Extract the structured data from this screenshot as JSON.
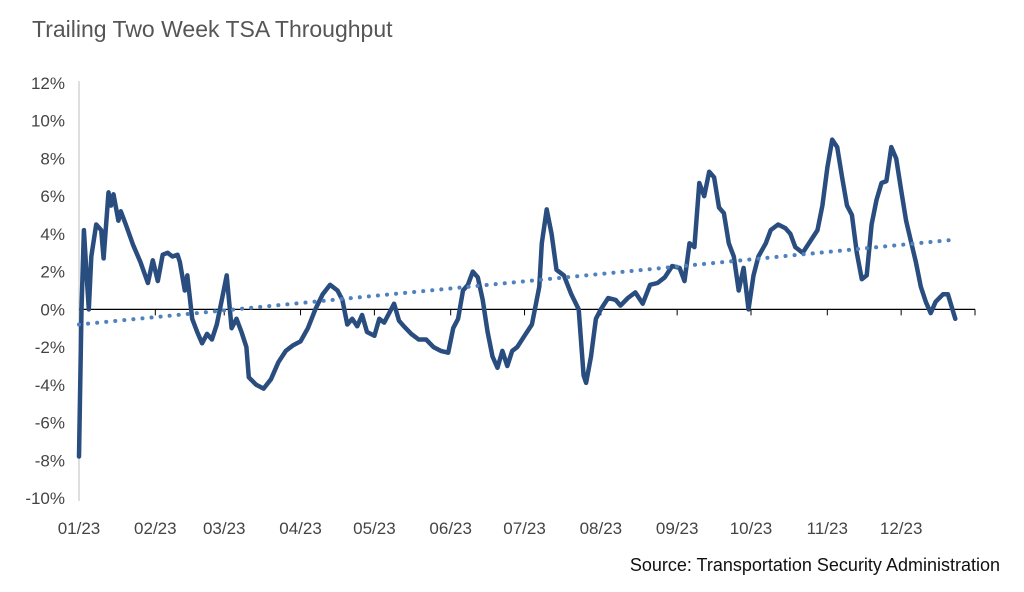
{
  "chart_data": {
    "type": "line",
    "title": "Trailing Two Week TSA Throughput",
    "source": "Source: Transportation Security Administration",
    "ylim": [
      -0.1,
      0.12
    ],
    "y_ticks": [
      "12%",
      "10%",
      "8%",
      "6%",
      "4%",
      "2%",
      "0%",
      "-2%",
      "-4%",
      "-6%",
      "-8%",
      "-10%"
    ],
    "y_tick_values": [
      0.12,
      0.1,
      0.08,
      0.06,
      0.04,
      0.02,
      0.0,
      -0.02,
      -0.04,
      -0.06,
      -0.08,
      -0.1
    ],
    "x_ticks": [
      "01/23",
      "02/23",
      "03/23",
      "04/23",
      "05/23",
      "06/23",
      "07/23",
      "08/23",
      "09/23",
      "10/23",
      "11/23",
      "12/23"
    ],
    "xlim": [
      "2023-01-01",
      "2023-12-31"
    ],
    "grid": false,
    "series": [
      {
        "style": "solid",
        "color": "#2a4d7f",
        "points": [
          [
            "2023-01-01",
            -0.078
          ],
          [
            "2023-01-02",
            0.0
          ],
          [
            "2023-01-03",
            0.042
          ],
          [
            "2023-01-04",
            0.02
          ],
          [
            "2023-01-05",
            0.0
          ],
          [
            "2023-01-06",
            0.028
          ],
          [
            "2023-01-08",
            0.045
          ],
          [
            "2023-01-10",
            0.042
          ],
          [
            "2023-01-11",
            0.027
          ],
          [
            "2023-01-13",
            0.062
          ],
          [
            "2023-01-14",
            0.055
          ],
          [
            "2023-01-15",
            0.061
          ],
          [
            "2023-01-17",
            0.047
          ],
          [
            "2023-01-18",
            0.052
          ],
          [
            "2023-01-20",
            0.045
          ],
          [
            "2023-01-23",
            0.034
          ],
          [
            "2023-01-26",
            0.025
          ],
          [
            "2023-01-29",
            0.014
          ],
          [
            "2023-01-31",
            0.026
          ],
          [
            "2023-02-02",
            0.015
          ],
          [
            "2023-02-04",
            0.029
          ],
          [
            "2023-02-06",
            0.03
          ],
          [
            "2023-02-08",
            0.028
          ],
          [
            "2023-02-10",
            0.029
          ],
          [
            "2023-02-11",
            0.025
          ],
          [
            "2023-02-13",
            0.01
          ],
          [
            "2023-02-14",
            0.018
          ],
          [
            "2023-02-16",
            -0.005
          ],
          [
            "2023-02-18",
            -0.012
          ],
          [
            "2023-02-20",
            -0.018
          ],
          [
            "2023-02-22",
            -0.013
          ],
          [
            "2023-02-24",
            -0.016
          ],
          [
            "2023-02-26",
            -0.008
          ],
          [
            "2023-02-28",
            0.005
          ],
          [
            "2023-03-02",
            0.018
          ],
          [
            "2023-03-04",
            -0.01
          ],
          [
            "2023-03-06",
            -0.005
          ],
          [
            "2023-03-08",
            -0.012
          ],
          [
            "2023-03-10",
            -0.02
          ],
          [
            "2023-03-11",
            -0.036
          ],
          [
            "2023-03-14",
            -0.04
          ],
          [
            "2023-03-17",
            -0.042
          ],
          [
            "2023-03-20",
            -0.037
          ],
          [
            "2023-03-23",
            -0.028
          ],
          [
            "2023-03-26",
            -0.022
          ],
          [
            "2023-03-29",
            -0.019
          ],
          [
            "2023-04-01",
            -0.017
          ],
          [
            "2023-04-04",
            -0.01
          ],
          [
            "2023-04-07",
            0.0
          ],
          [
            "2023-04-10",
            0.008
          ],
          [
            "2023-04-13",
            0.013
          ],
          [
            "2023-04-16",
            0.01
          ],
          [
            "2023-04-18",
            0.005
          ],
          [
            "2023-04-20",
            -0.008
          ],
          [
            "2023-04-22",
            -0.005
          ],
          [
            "2023-04-24",
            -0.009
          ],
          [
            "2023-04-26",
            -0.003
          ],
          [
            "2023-04-28",
            -0.012
          ],
          [
            "2023-05-01",
            -0.014
          ],
          [
            "2023-05-03",
            -0.005
          ],
          [
            "2023-05-05",
            -0.007
          ],
          [
            "2023-05-07",
            -0.002
          ],
          [
            "2023-05-09",
            0.003
          ],
          [
            "2023-05-11",
            -0.006
          ],
          [
            "2023-05-13",
            -0.009
          ],
          [
            "2023-05-16",
            -0.013
          ],
          [
            "2023-05-19",
            -0.016
          ],
          [
            "2023-05-22",
            -0.016
          ],
          [
            "2023-05-25",
            -0.02
          ],
          [
            "2023-05-28",
            -0.022
          ],
          [
            "2023-05-31",
            -0.023
          ],
          [
            "2023-06-02",
            -0.01
          ],
          [
            "2023-06-04",
            -0.005
          ],
          [
            "2023-06-06",
            0.01
          ],
          [
            "2023-06-08",
            0.013
          ],
          [
            "2023-06-10",
            0.02
          ],
          [
            "2023-06-12",
            0.017
          ],
          [
            "2023-06-14",
            0.005
          ],
          [
            "2023-06-16",
            -0.012
          ],
          [
            "2023-06-18",
            -0.025
          ],
          [
            "2023-06-20",
            -0.031
          ],
          [
            "2023-06-22",
            -0.022
          ],
          [
            "2023-06-24",
            -0.03
          ],
          [
            "2023-06-26",
            -0.022
          ],
          [
            "2023-06-28",
            -0.02
          ],
          [
            "2023-07-01",
            -0.014
          ],
          [
            "2023-07-04",
            -0.008
          ],
          [
            "2023-07-07",
            0.012
          ],
          [
            "2023-07-08",
            0.035
          ],
          [
            "2023-07-10",
            0.053
          ],
          [
            "2023-07-12",
            0.04
          ],
          [
            "2023-07-14",
            0.021
          ],
          [
            "2023-07-17",
            0.018
          ],
          [
            "2023-07-20",
            0.008
          ],
          [
            "2023-07-23",
            0.0
          ],
          [
            "2023-07-25",
            -0.035
          ],
          [
            "2023-07-26",
            -0.039
          ],
          [
            "2023-07-28",
            -0.025
          ],
          [
            "2023-07-30",
            -0.005
          ],
          [
            "2023-08-01",
            0.0
          ],
          [
            "2023-08-04",
            0.006
          ],
          [
            "2023-08-07",
            0.005
          ],
          [
            "2023-08-09",
            0.002
          ],
          [
            "2023-08-12",
            0.006
          ],
          [
            "2023-08-15",
            0.009
          ],
          [
            "2023-08-18",
            0.003
          ],
          [
            "2023-08-21",
            0.013
          ],
          [
            "2023-08-24",
            0.014
          ],
          [
            "2023-08-27",
            0.017
          ],
          [
            "2023-08-30",
            0.023
          ],
          [
            "2023-09-02",
            0.022
          ],
          [
            "2023-09-04",
            0.015
          ],
          [
            "2023-09-06",
            0.035
          ],
          [
            "2023-09-08",
            0.033
          ],
          [
            "2023-09-10",
            0.067
          ],
          [
            "2023-09-12",
            0.06
          ],
          [
            "2023-09-14",
            0.073
          ],
          [
            "2023-09-16",
            0.07
          ],
          [
            "2023-09-18",
            0.054
          ],
          [
            "2023-09-20",
            0.051
          ],
          [
            "2023-09-22",
            0.035
          ],
          [
            "2023-09-24",
            0.028
          ],
          [
            "2023-09-26",
            0.01
          ],
          [
            "2023-09-28",
            0.022
          ],
          [
            "2023-09-30",
            0.0
          ],
          [
            "2023-10-02",
            0.018
          ],
          [
            "2023-10-04",
            0.028
          ],
          [
            "2023-10-07",
            0.035
          ],
          [
            "2023-10-09",
            0.042
          ],
          [
            "2023-10-12",
            0.045
          ],
          [
            "2023-10-15",
            0.043
          ],
          [
            "2023-10-17",
            0.04
          ],
          [
            "2023-10-19",
            0.033
          ],
          [
            "2023-10-22",
            0.03
          ],
          [
            "2023-10-25",
            0.036
          ],
          [
            "2023-10-28",
            0.042
          ],
          [
            "2023-10-30",
            0.055
          ],
          [
            "2023-11-01",
            0.075
          ],
          [
            "2023-11-03",
            0.09
          ],
          [
            "2023-11-05",
            0.086
          ],
          [
            "2023-11-07",
            0.07
          ],
          [
            "2023-11-09",
            0.055
          ],
          [
            "2023-11-11",
            0.05
          ],
          [
            "2023-11-13",
            0.03
          ],
          [
            "2023-11-15",
            0.016
          ],
          [
            "2023-11-17",
            0.018
          ],
          [
            "2023-11-19",
            0.045
          ],
          [
            "2023-11-21",
            0.058
          ],
          [
            "2023-11-23",
            0.067
          ],
          [
            "2023-11-25",
            0.068
          ],
          [
            "2023-11-27",
            0.086
          ],
          [
            "2023-11-29",
            0.08
          ],
          [
            "2023-12-01",
            0.063
          ],
          [
            "2023-12-03",
            0.047
          ],
          [
            "2023-12-05",
            0.036
          ],
          [
            "2023-12-07",
            0.025
          ],
          [
            "2023-12-09",
            0.012
          ],
          [
            "2023-12-11",
            0.004
          ],
          [
            "2023-12-13",
            -0.002
          ],
          [
            "2023-12-15",
            0.004
          ],
          [
            "2023-12-18",
            0.008
          ],
          [
            "2023-12-20",
            0.008
          ],
          [
            "2023-12-23",
            -0.005
          ]
        ]
      },
      {
        "style": "dotted",
        "color": "#4f81bd",
        "points": [
          [
            "2023-01-01",
            -0.008
          ],
          [
            "2023-12-23",
            0.037
          ]
        ]
      }
    ]
  }
}
